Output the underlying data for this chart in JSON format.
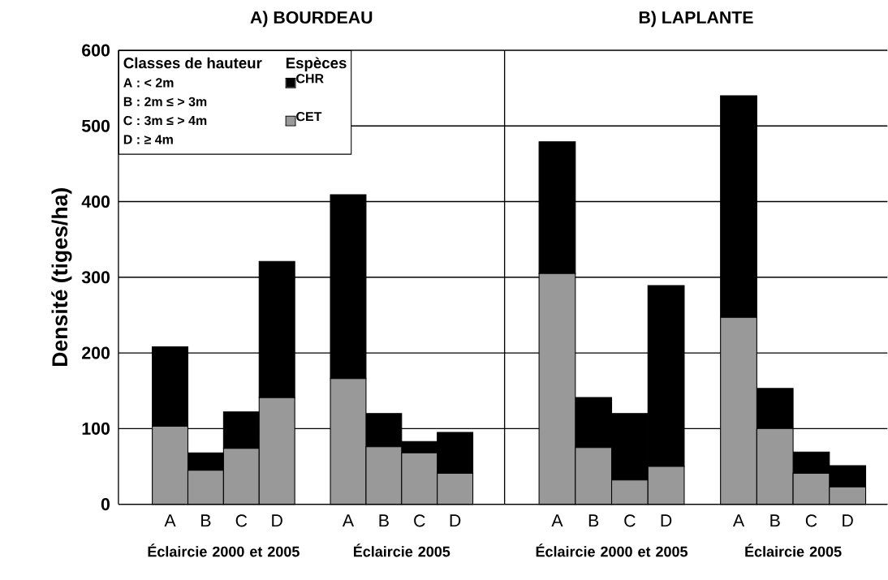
{
  "chart_data": [
    {
      "type": "bar",
      "title": "A) BOURDEAU",
      "ylabel": "Densité (tiges/ha)",
      "stacked": true,
      "categories": [
        "A",
        "B",
        "C",
        "D",
        null,
        "A",
        "B",
        "C",
        "D"
      ],
      "series": [
        {
          "name": "CET",
          "color": "#999999",
          "values": [
            103,
            45,
            74,
            141,
            null,
            166,
            76,
            68,
            41
          ]
        },
        {
          "name": "CHR",
          "color": "#000000",
          "values": [
            105,
            23,
            48,
            180,
            null,
            243,
            44,
            15,
            54
          ]
        }
      ],
      "ylim": [
        0,
        600
      ],
      "yticks": [
        0,
        100,
        200,
        300,
        400,
        500,
        600
      ],
      "grid": "y",
      "legend": "top left",
      "legend_title": "Espèces",
      "annotations": [
        "Classes de hauteur",
        "A : < 2m",
        "B : 2m ≤ > 3m",
        "C : 3m ≤ > 4m",
        "D :  ≥ 4m",
        "Éclaircie 2000 et 2005",
        "Éclaircie 2005"
      ]
    },
    {
      "type": "bar",
      "title": "B) LAPLANTE",
      "stacked": true,
      "categories": [
        "A",
        "B",
        "C",
        "D",
        null,
        "A",
        "B",
        "C",
        "D"
      ],
      "series": [
        {
          "color": "#999999",
          "values": [
            305,
            75,
            32,
            50,
            null,
            247,
            100,
            41,
            23
          ]
        },
        {
          "color": "#000000",
          "values": [
            174,
            66,
            88,
            239,
            null,
            293,
            53,
            28,
            28
          ]
        }
      ],
      "ylim": [
        0,
        600
      ],
      "yticks": [
        0,
        100,
        200,
        300,
        400,
        500,
        600
      ],
      "grid": "y",
      "tick_labels": "x",
      "annotations": [
        "Éclaircie 2000 et 2005",
        "Éclaircie 2005"
      ]
    }
  ]
}
